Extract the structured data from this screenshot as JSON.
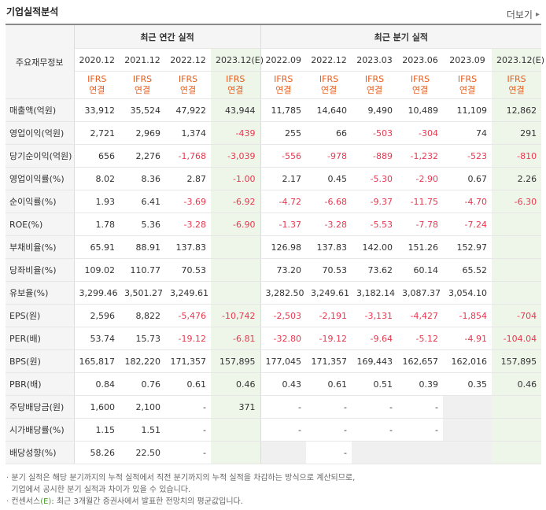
{
  "header": {
    "title": "기업실적분석",
    "more_label": "더보기"
  },
  "table": {
    "main_header": "주요재무정보",
    "group_annual": "최근 연간 실적",
    "group_quarter": "최근 분기 실적",
    "periods": [
      "2020.12",
      "2021.12",
      "2022.12",
      "2023.12(E)",
      "2022.09",
      "2022.12",
      "2023.03",
      "2023.06",
      "2023.09",
      "2023.12(E)"
    ],
    "ifrs_line1": "IFRS",
    "ifrs_line2": "연결",
    "rows": [
      {
        "label": "매출액(억원)",
        "values": [
          "33,912",
          "35,524",
          "47,922",
          "43,944",
          "11,785",
          "14,640",
          "9,490",
          "10,489",
          "11,109",
          "12,862"
        ]
      },
      {
        "label": "영업이익(억원)",
        "values": [
          "2,721",
          "2,969",
          "1,374",
          "-439",
          "255",
          "66",
          "-503",
          "-304",
          "74",
          "291"
        ]
      },
      {
        "label": "당기순이익(억원)",
        "values": [
          "656",
          "2,276",
          "-1,768",
          "-3,039",
          "-556",
          "-978",
          "-889",
          "-1,232",
          "-523",
          "-810"
        ]
      },
      {
        "label": "영업이익률(%)",
        "values": [
          "8.02",
          "8.36",
          "2.87",
          "-1.00",
          "2.17",
          "0.45",
          "-5.30",
          "-2.90",
          "0.67",
          "2.26"
        ]
      },
      {
        "label": "순이익률(%)",
        "values": [
          "1.93",
          "6.41",
          "-3.69",
          "-6.92",
          "-4.72",
          "-6.68",
          "-9.37",
          "-11.75",
          "-4.70",
          "-6.30"
        ]
      },
      {
        "label": "ROE(%)",
        "values": [
          "1.78",
          "5.36",
          "-3.28",
          "-6.90",
          "-1.37",
          "-3.28",
          "-5.53",
          "-7.78",
          "-7.24",
          ""
        ]
      },
      {
        "label": "부채비율(%)",
        "values": [
          "65.91",
          "88.91",
          "137.83",
          "",
          "126.98",
          "137.83",
          "142.00",
          "151.26",
          "152.97",
          ""
        ]
      },
      {
        "label": "당좌비율(%)",
        "values": [
          "109.02",
          "110.77",
          "70.53",
          "",
          "73.20",
          "70.53",
          "73.62",
          "60.14",
          "65.52",
          ""
        ]
      },
      {
        "label": "유보율(%)",
        "values": [
          "3,299.46",
          "3,501.27",
          "3,249.61",
          "",
          "3,282.50",
          "3,249.61",
          "3,182.14",
          "3,087.37",
          "3,054.10",
          ""
        ]
      },
      {
        "label": "EPS(원)",
        "values": [
          "2,596",
          "8,822",
          "-5,476",
          "-10,742",
          "-2,503",
          "-2,191",
          "-3,131",
          "-4,427",
          "-1,854",
          "-704"
        ]
      },
      {
        "label": "PER(배)",
        "values": [
          "53.74",
          "15.73",
          "-19.12",
          "-6.81",
          "-32.80",
          "-19.12",
          "-9.64",
          "-5.12",
          "-4.91",
          "-104.04"
        ]
      },
      {
        "label": "BPS(원)",
        "values": [
          "165,817",
          "182,220",
          "171,357",
          "157,895",
          "177,045",
          "171,357",
          "169,443",
          "162,657",
          "162,016",
          "157,895"
        ]
      },
      {
        "label": "PBR(배)",
        "values": [
          "0.84",
          "0.76",
          "0.61",
          "0.46",
          "0.43",
          "0.61",
          "0.51",
          "0.39",
          "0.35",
          "0.46"
        ]
      },
      {
        "label": "주당배당금(원)",
        "values": [
          "1,600",
          "2,100",
          "-",
          "371",
          "-",
          "-",
          "-",
          "-",
          "",
          ""
        ]
      },
      {
        "label": "시가배당률(%)",
        "values": [
          "1.15",
          "1.51",
          "-",
          "",
          "-",
          "-",
          "-",
          "-",
          "",
          ""
        ]
      },
      {
        "label": "배당성향(%)",
        "values": [
          "58.26",
          "22.50",
          "-",
          "",
          "",
          "-",
          "",
          "",
          "",
          ""
        ]
      }
    ]
  },
  "notes": {
    "line1": "분기 실적은 해당 분기까지의 누적 실적에서 직전 분기까지의 누적 실적을 차감하는 방식으로 계산되므로,",
    "line2": "기업에서 공시한 분기 실적과 차이가 있을 수 있습니다.",
    "line3_prefix": "컨센서스",
    "line3_badge": "(E)",
    "line3_suffix": ": 최근 3개월간 증권사에서 발표한 전망치의 평균값입니다."
  },
  "colors": {
    "negative": "#e8384f",
    "ifrs": "#e85b1a",
    "estimate_bg": "#eef6ea",
    "estimate_text": "#4b9b2e"
  }
}
